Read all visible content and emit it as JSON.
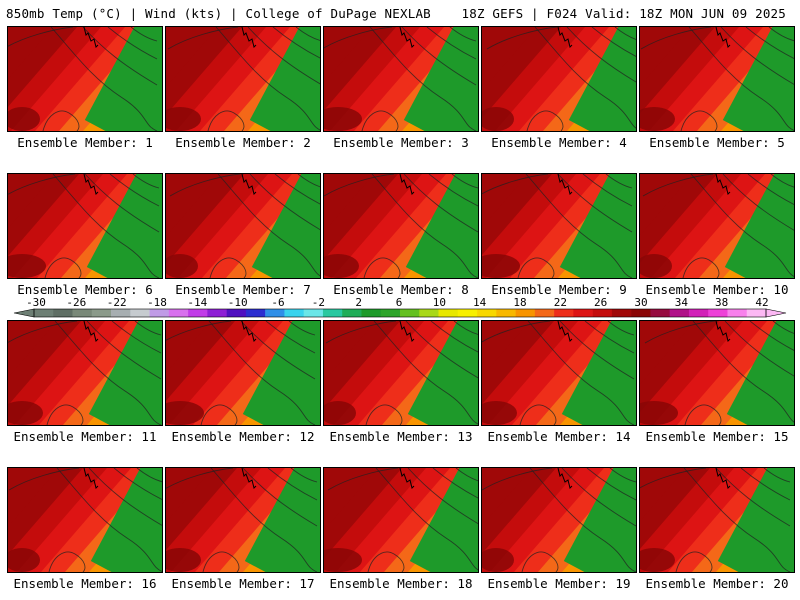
{
  "header": {
    "left": "850mb Temp (°C) | Wind (kts) | College of DuPage NEXLAB",
    "right": "18Z GEFS | F024 Valid: 18Z MON JUN 09 2025"
  },
  "caption_prefix": "Ensemble Member: ",
  "members": [
    1,
    2,
    3,
    4,
    5,
    6,
    7,
    8,
    9,
    10,
    11,
    12,
    13,
    14,
    15,
    16,
    17,
    18,
    19,
    20
  ],
  "captions": [
    "Ensemble Member: 1",
    "Ensemble Member: 2",
    "Ensemble Member: 3",
    "Ensemble Member: 4",
    "Ensemble Member: 5",
    "Ensemble Member: 6",
    "Ensemble Member: 7",
    "Ensemble Member: 8",
    "Ensemble Member: 9",
    "Ensemble Member: 10",
    "Ensemble Member: 11",
    "Ensemble Member: 12",
    "Ensemble Member: 13",
    "Ensemble Member: 14",
    "Ensemble Member: 15",
    "Ensemble Member: 16",
    "Ensemble Member: 17",
    "Ensemble Member: 18",
    "Ensemble Member: 19",
    "Ensemble Member: 20"
  ],
  "colorbar": {
    "tick_labels": [
      "-30",
      "-26",
      "-22",
      "-18",
      "-14",
      "-10",
      "-6",
      "-2",
      "2",
      "6",
      "10",
      "14",
      "18",
      "22",
      "26",
      "30",
      "34",
      "38",
      "42"
    ],
    "colors": [
      "#6d7f74",
      "#5f6e64",
      "#798878",
      "#8b9a8a",
      "#a7aeb1",
      "#c6cbcf",
      "#c09be6",
      "#d870ee",
      "#c13ce8",
      "#8e1fd5",
      "#5010c0",
      "#2c2ed0",
      "#2f8fe8",
      "#39d3ee",
      "#6ae6e8",
      "#28c8a0",
      "#1fad58",
      "#1e9a2a",
      "#2da42a",
      "#64c020",
      "#a8d818",
      "#e8e800",
      "#f8f000",
      "#f8d800",
      "#f8b800",
      "#f89400",
      "#f46818",
      "#ee2e1a",
      "#dd1414",
      "#c40c0c",
      "#a00808",
      "#8a0606",
      "#960c40",
      "#b01088",
      "#d220b8",
      "#ee40d8",
      "#f880ec",
      "#fcb8f4"
    ]
  },
  "palette_warm_to_cool": [
    "#a00808",
    "#c40c0c",
    "#dd1414",
    "#ee2e1a",
    "#f46818",
    "#f89400",
    "#f8b800",
    "#f8d800",
    "#f8f000",
    "#a8d818",
    "#64c020",
    "#2da42a",
    "#1e9a2a"
  ]
}
